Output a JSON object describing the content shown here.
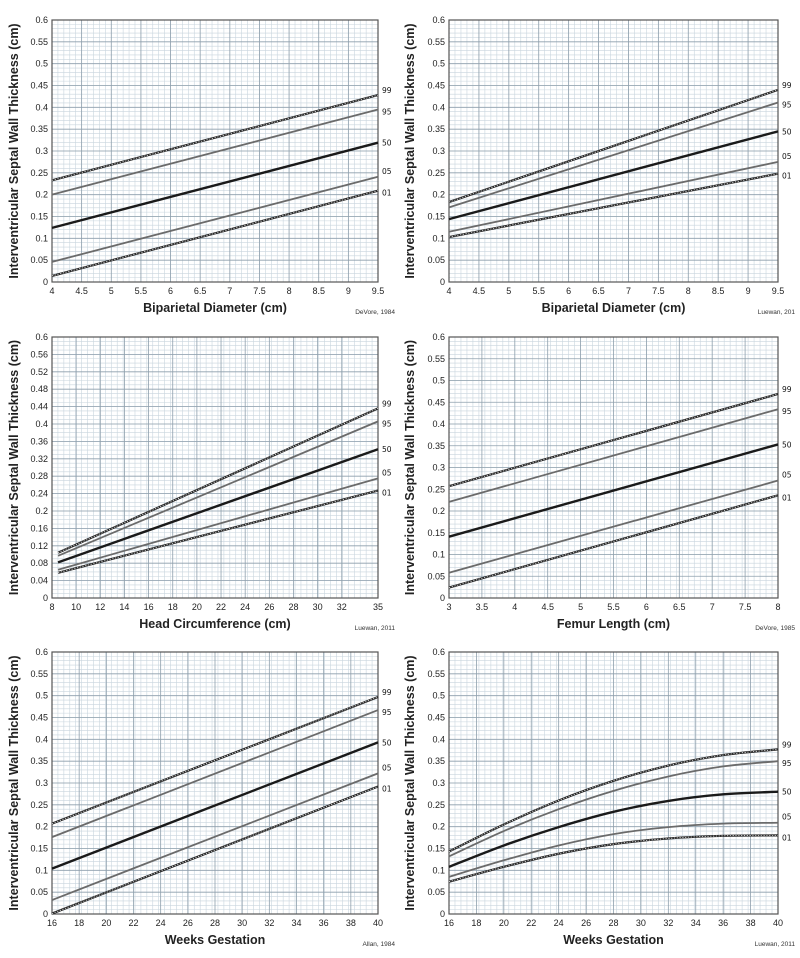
{
  "chart_data": [
    {
      "type": "line",
      "ylabel": "Interventricular Septal  Wall Thickness (cm)",
      "xlabel": "Biparietal Diameter (cm)",
      "citation": "DeVore, 1984",
      "xlim": [
        4,
        9.5
      ],
      "ylim": [
        0,
        0.6
      ],
      "xticks": [
        "4",
        "4.5",
        "5",
        "5.5",
        "6",
        "6.5",
        "7",
        "7.5",
        "8",
        "8.5",
        "9",
        "9.5"
      ],
      "yticks": [
        "0",
        "0.05",
        "0.1",
        "0.15",
        "0.2",
        "0.25",
        "0.3",
        "0.35",
        "0.4",
        "0.45",
        "0.5",
        "0.55",
        "0.6"
      ],
      "series": [
        {
          "name": "99",
          "x": [
            4,
            9.5
          ],
          "values": [
            0.233,
            0.428
          ]
        },
        {
          "name": "95",
          "x": [
            4,
            9.5
          ],
          "values": [
            0.2,
            0.395
          ]
        },
        {
          "name": "50",
          "x": [
            4,
            9.5
          ],
          "values": [
            0.124,
            0.319
          ]
        },
        {
          "name": "05",
          "x": [
            4,
            9.5
          ],
          "values": [
            0.046,
            0.241
          ]
        },
        {
          "name": "01",
          "x": [
            4,
            9.5
          ],
          "values": [
            0.014,
            0.209
          ]
        }
      ]
    },
    {
      "type": "line",
      "ylabel": "Interventricular Septal  Wall Thickness (cm)",
      "xlabel": "Biparietal Diameter (cm)",
      "citation": "Luewan, 201",
      "xlim": [
        4,
        9.5
      ],
      "ylim": [
        0,
        0.6
      ],
      "xticks": [
        "4",
        "4.5",
        "5",
        "5.5",
        "6",
        "6.5",
        "7",
        "7.5",
        "8",
        "8.5",
        "9",
        "9.5"
      ],
      "yticks": [
        "0",
        "0.05",
        "0.1",
        "0.15",
        "0.2",
        "0.25",
        "0.3",
        "0.35",
        "0.4",
        "0.45",
        "0.5",
        "0.55",
        "0.6"
      ],
      "series": [
        {
          "name": "99",
          "x": [
            4,
            9.5
          ],
          "values": [
            0.183,
            0.44
          ]
        },
        {
          "name": "95",
          "x": [
            4,
            9.5
          ],
          "values": [
            0.171,
            0.411
          ]
        },
        {
          "name": "50",
          "x": [
            4,
            9.5
          ],
          "values": [
            0.144,
            0.345
          ]
        },
        {
          "name": "05",
          "x": [
            4,
            9.5
          ],
          "values": [
            0.115,
            0.275
          ]
        },
        {
          "name": "01",
          "x": [
            4,
            9.5
          ],
          "values": [
            0.103,
            0.248
          ]
        }
      ]
    },
    {
      "type": "line",
      "ylabel": "Interventricular Septal Wall Thickness (cm)",
      "xlabel": "Head Circumference (cm)",
      "citation": "Luewan, 2011",
      "xlim": [
        8,
        35
      ],
      "ylim": [
        0,
        0.6
      ],
      "xticks": [
        "8",
        "10",
        "12",
        "14",
        "16",
        "18",
        "20",
        "22",
        "24",
        "26",
        "28",
        "30",
        "32",
        "35"
      ],
      "xtickvals": [
        8,
        10,
        12,
        14,
        16,
        18,
        20,
        22,
        24,
        26,
        28,
        30,
        32,
        35
      ],
      "yticks": [
        "0",
        "0.04",
        "0.08",
        "0.12",
        "0.16",
        "0.2",
        "0.24",
        "0.28",
        "0.32",
        "0.36",
        "0.4",
        "0.44",
        "0.48",
        "0.52",
        "0.56",
        "0.6"
      ],
      "series": [
        {
          "name": "99",
          "x": [
            8.5,
            35
          ],
          "values": [
            0.104,
            0.436
          ]
        },
        {
          "name": "95",
          "x": [
            8.5,
            35
          ],
          "values": [
            0.097,
            0.406
          ]
        },
        {
          "name": "50",
          "x": [
            8.5,
            35
          ],
          "values": [
            0.082,
            0.342
          ]
        },
        {
          "name": "05",
          "x": [
            8.5,
            35
          ],
          "values": [
            0.065,
            0.275
          ]
        },
        {
          "name": "01",
          "x": [
            8.5,
            35
          ],
          "values": [
            0.058,
            0.247
          ]
        }
      ]
    },
    {
      "type": "line",
      "ylabel": "Interventricular Septal  Wall Thickness (cm)",
      "xlabel": "Femur Length (cm)",
      "citation": "DeVore, 1985",
      "xlim": [
        3,
        8
      ],
      "ylim": [
        0,
        0.6
      ],
      "xticks": [
        "3",
        "3.5",
        "4",
        "4.5",
        "5",
        "5.5",
        "6",
        "6.5",
        "7",
        "7.5",
        "8"
      ],
      "yticks": [
        "0",
        "0.05",
        "0.1",
        "0.15",
        "0.2",
        "0.25",
        "0.3",
        "0.35",
        "0.4",
        "0.45",
        "0.5",
        "0.55",
        "0.6"
      ],
      "series": [
        {
          "name": "99",
          "x": [
            3,
            8
          ],
          "values": [
            0.257,
            0.469
          ]
        },
        {
          "name": "95",
          "x": [
            3,
            8
          ],
          "values": [
            0.221,
            0.434
          ]
        },
        {
          "name": "50",
          "x": [
            3,
            8
          ],
          "values": [
            0.141,
            0.353
          ]
        },
        {
          "name": "05",
          "x": [
            3,
            8
          ],
          "values": [
            0.058,
            0.27
          ]
        },
        {
          "name": "01",
          "x": [
            3,
            8
          ],
          "values": [
            0.024,
            0.236
          ]
        }
      ]
    },
    {
      "type": "line",
      "ylabel": "Interventricular Septal Wall Thickness (cm)",
      "xlabel": "Weeks Gestation",
      "citation": "Allan, 1984",
      "xlim": [
        16,
        40
      ],
      "ylim": [
        0,
        0.6
      ],
      "xticks": [
        "16",
        "18",
        "20",
        "22",
        "24",
        "26",
        "28",
        "30",
        "32",
        "34",
        "36",
        "38",
        "40"
      ],
      "yticks": [
        "0",
        "0.05",
        "0.1",
        "0.15",
        "0.2",
        "0.25",
        "0.3",
        "0.35",
        "0.4",
        "0.45",
        "0.5",
        "0.55",
        "0.6"
      ],
      "series": [
        {
          "name": "99",
          "x": [
            16,
            40
          ],
          "values": [
            0.207,
            0.497
          ]
        },
        {
          "name": "95",
          "x": [
            16,
            40
          ],
          "values": [
            0.176,
            0.467
          ]
        },
        {
          "name": "50",
          "x": [
            16,
            40
          ],
          "values": [
            0.104,
            0.393
          ]
        },
        {
          "name": "05",
          "x": [
            16,
            40
          ],
          "values": [
            0.032,
            0.322
          ]
        },
        {
          "name": "01",
          "x": [
            16,
            40
          ],
          "values": [
            0.001,
            0.292
          ]
        }
      ]
    },
    {
      "type": "line",
      "ylabel": "Interventricular Septal  Wall Thickness (cm)",
      "xlabel": "Weeks Gestation",
      "citation": "Luewan, 2011",
      "xlim": [
        16,
        40
      ],
      "ylim": [
        0,
        0.6
      ],
      "xticks": [
        "16",
        "18",
        "20",
        "22",
        "24",
        "26",
        "28",
        "30",
        "32",
        "34",
        "36",
        "38",
        "40"
      ],
      "yticks": [
        "0",
        "0.05",
        "0.1",
        "0.15",
        "0.2",
        "0.25",
        "0.3",
        "0.35",
        "0.4",
        "0.45",
        "0.5",
        "0.55",
        "0.6"
      ],
      "series": [
        {
          "name": "99",
          "x": [
            16,
            20,
            24,
            28,
            32,
            36,
            40
          ],
          "values": [
            0.143,
            0.205,
            0.26,
            0.305,
            0.34,
            0.364,
            0.377
          ]
        },
        {
          "name": "95",
          "x": [
            16,
            20,
            24,
            28,
            32,
            36,
            40
          ],
          "values": [
            0.132,
            0.19,
            0.24,
            0.282,
            0.315,
            0.338,
            0.35
          ]
        },
        {
          "name": "50",
          "x": [
            16,
            20,
            24,
            28,
            32,
            36,
            40
          ],
          "values": [
            0.108,
            0.157,
            0.199,
            0.234,
            0.259,
            0.274,
            0.28
          ]
        },
        {
          "name": "05",
          "x": [
            16,
            20,
            24,
            28,
            32,
            36,
            40
          ],
          "values": [
            0.085,
            0.123,
            0.157,
            0.183,
            0.199,
            0.207,
            0.209
          ]
        },
        {
          "name": "01",
          "x": [
            16,
            20,
            24,
            28,
            32,
            36,
            40
          ],
          "values": [
            0.074,
            0.108,
            0.138,
            0.16,
            0.173,
            0.179,
            0.18
          ]
        }
      ]
    }
  ],
  "colors": {
    "grid_minor": "#c9d5de",
    "grid_major": "#8fa0ad",
    "axis": "#555555",
    "median": "#1a1a1a",
    "inner": "#6b6b6b",
    "outer": "#2a2a2a"
  }
}
